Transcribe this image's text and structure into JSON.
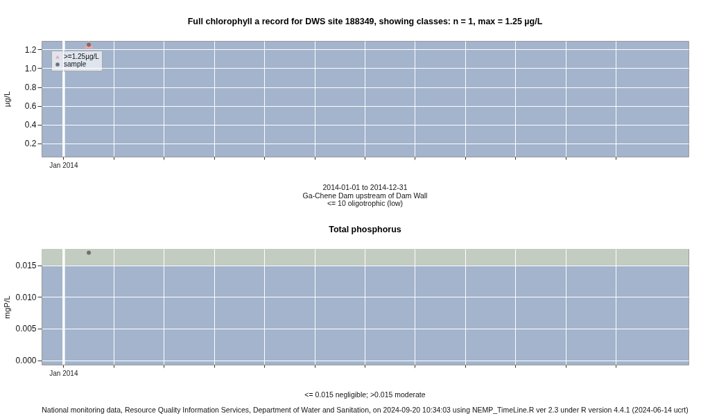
{
  "chart_data": [
    {
      "type": "scatter",
      "title": "Full chlorophyll a record for DWS site 188349, showing classes: n = 1, max = 1.25 µg/L",
      "ylabel": "µg/L",
      "categories": [
        "Jan 2014",
        null,
        null,
        null,
        null,
        null,
        null,
        null,
        null,
        null,
        null,
        null
      ],
      "series": [
        {
          "name": ">=1.25µg/L",
          "color": "#f4a3a8",
          "marker": "triangle",
          "x": [
            "Jan 2014"
          ],
          "values": [
            1.25
          ]
        },
        {
          "name": "sample",
          "color": "#707070",
          "marker": "circle",
          "x": [
            "Jan 2014"
          ],
          "values": [
            1.25
          ]
        }
      ],
      "ylim": [
        0.06,
        1.29
      ],
      "yticks": [
        0.2,
        0.4,
        0.6,
        0.8,
        {
          "value": 1,
          "label": "1.0"
        },
        1.2
      ],
      "grid": true,
      "legend": "top left",
      "ref_lines": [
        {
          "axis": "x",
          "value": "Jan 2014",
          "color": "#ffffff"
        }
      ],
      "annotations": [
        "2014-01-01 to 2014-12-31",
        "Ga-Chene Dam upstream of Dam Wall",
        "<= 10 oligotrophic (low)"
      ]
    },
    {
      "type": "scatter",
      "title": "Total phosphorus",
      "ylabel": "mgP/L",
      "categories": [
        "Jan 2014",
        null,
        null,
        null,
        null,
        null,
        null,
        null,
        null,
        null,
        null,
        null
      ],
      "series": [
        {
          "color": "#707070",
          "marker": "circle",
          "x": [
            "Jan 2014"
          ],
          "values": [
            0.017
          ]
        }
      ],
      "ylim": [
        -0.0007,
        0.0176
      ],
      "yticks": [
        {
          "value": 0,
          "label": "0.000"
        },
        0.005,
        {
          "value": 0.01,
          "label": "0.010"
        },
        0.015
      ],
      "grid": true,
      "bands": [
        {
          "axis": "y",
          "from": 0.015,
          "to": 0.0176,
          "color": "#c3ccc0"
        }
      ],
      "ref_lines": [
        {
          "axis": "x",
          "value": "Jan 2014",
          "color": "#ffffff"
        }
      ],
      "annotations": [
        "<= 0.015 negligible; >0.015 moderate",
        "National monitoring data, Resource Quality Information Services, Department of Water and Sanitation, on 2024-09-20 10:34:03 using NEMP_TimeLine.R ver 2.3 under R version 4.4.1 (2024-06-14 ucrt)"
      ]
    }
  ]
}
